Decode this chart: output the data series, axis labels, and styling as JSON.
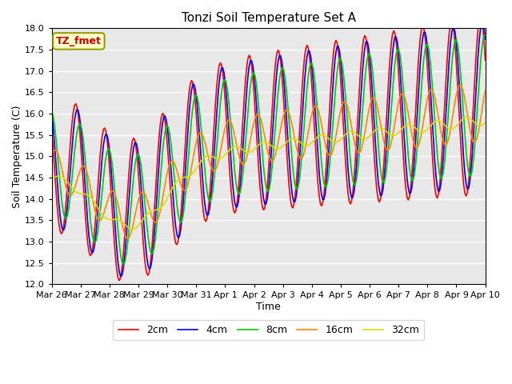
{
  "title": "Tonzi Soil Temperature Set A",
  "xlabel": "Time",
  "ylabel": "Soil Temperature (C)",
  "annotation": "TZ_fmet",
  "ylim": [
    12.0,
    18.0
  ],
  "yticks": [
    12.0,
    12.5,
    13.0,
    13.5,
    14.0,
    14.5,
    15.0,
    15.5,
    16.0,
    16.5,
    17.0,
    17.5,
    18.0
  ],
  "series": [
    {
      "label": "2cm",
      "color": "#ff0000",
      "lw": 1.2
    },
    {
      "label": "4cm",
      "color": "#0000ff",
      "lw": 1.2
    },
    {
      "label": "8cm",
      "color": "#00cc00",
      "lw": 1.2
    },
    {
      "label": "16cm",
      "color": "#ff8800",
      "lw": 1.2
    },
    {
      "label": "32cm",
      "color": "#dddd00",
      "lw": 1.2
    }
  ],
  "bg_color": "#e8e8e8",
  "grid_color": "#ffffff",
  "x_tick_labels": [
    "Mar 26",
    "Mar 27",
    "Mar 28",
    "Mar 29",
    "Mar 30",
    "Mar 31",
    "Apr 1",
    "Apr 2",
    "Apr 3",
    "Apr 4",
    "Apr 5",
    "Apr 6",
    "Apr 7",
    "Apr 8",
    "Apr 9",
    "Apr 10"
  ]
}
